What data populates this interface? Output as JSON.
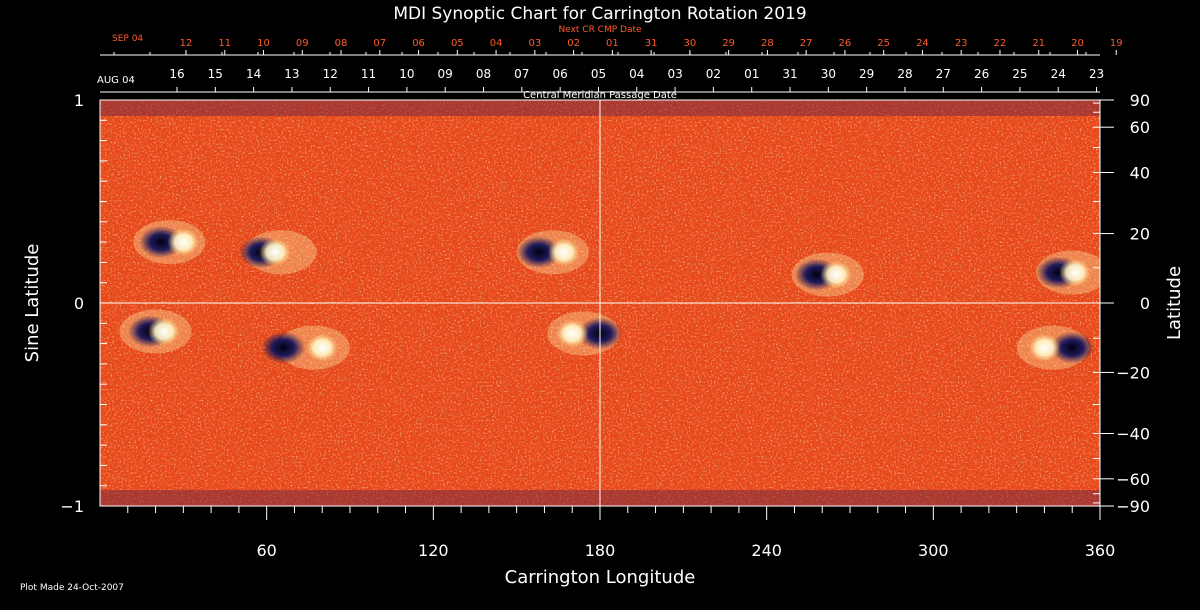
{
  "chart_data": {
    "type": "heatmap",
    "title": "MDI Synoptic Chart for Carrington Rotation 2019",
    "next_cr_label": "Next CR CMP Date",
    "next_cr_start": "SEP 04",
    "next_cr_dates": [
      "12",
      "11",
      "10",
      "09",
      "08",
      "07",
      "06",
      "05",
      "04",
      "03",
      "02",
      "01",
      "31",
      "30",
      "29",
      "28",
      "27",
      "26",
      "25",
      "24",
      "23",
      "22",
      "21",
      "20",
      "19"
    ],
    "cmp_start": "AUG 04",
    "cmp_dates": [
      "16",
      "15",
      "14",
      "13",
      "12",
      "11",
      "10",
      "09",
      "08",
      "07",
      "06",
      "05",
      "04",
      "03",
      "02",
      "01",
      "31",
      "30",
      "29",
      "28",
      "27",
      "26",
      "25",
      "24",
      "23"
    ],
    "cmp_label": "Central Meridian Passage Date",
    "xlabel": "Carrington Longitude",
    "xlim": [
      0,
      360
    ],
    "x_ticks": [
      60,
      120,
      180,
      240,
      300,
      360
    ],
    "ylabel_left": "Sine Latitude",
    "ylim": [
      -1,
      1
    ],
    "y_ticks_left": [
      {
        "label": "1",
        "value": 1
      },
      {
        "label": "0",
        "value": 0
      },
      {
        "label": "−1",
        "value": -1
      }
    ],
    "ylabel_right": "Latitude",
    "y_ticks_right": [
      90,
      60,
      40,
      20,
      0,
      -20,
      -40,
      -60,
      -90
    ],
    "grid": "center cross at longitude 180 and latitude 0",
    "colormap": [
      "#14145a",
      "#b02800",
      "#e8481a",
      "#ffa43c",
      "#fff6c8",
      "#ffffff"
    ],
    "active_regions": [
      {
        "lon": 25,
        "sinlat": 0.3,
        "neg_lon": 22,
        "pos_lon": 30
      },
      {
        "lon": 65,
        "sinlat": 0.25,
        "neg_lon": 58,
        "pos_lon": 63
      },
      {
        "lon": 163,
        "sinlat": 0.25,
        "neg_lon": 158,
        "pos_lon": 167
      },
      {
        "lon": 262,
        "sinlat": 0.14,
        "neg_lon": 258,
        "pos_lon": 265
      },
      {
        "lon": 350,
        "sinlat": 0.15,
        "neg_lon": 345,
        "pos_lon": 351
      },
      {
        "lon": 20,
        "sinlat": -0.14,
        "neg_lon": 18,
        "pos_lon": 23
      },
      {
        "lon": 77,
        "sinlat": -0.22,
        "neg_lon": 66,
        "pos_lon": 80
      },
      {
        "lon": 174,
        "sinlat": -0.15,
        "neg_lon": 180,
        "pos_lon": 170
      },
      {
        "lon": 343,
        "sinlat": -0.22,
        "neg_lon": 350,
        "pos_lon": 340
      }
    ]
  },
  "footer": {
    "plot_made": "Plot Made 24-Oct-2007"
  }
}
